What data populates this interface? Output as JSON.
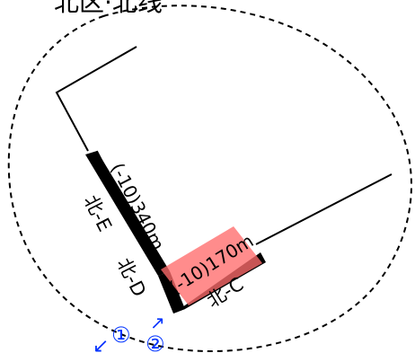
{
  "diagram": {
    "title_text": "北区·北线",
    "labels": {
      "north_e": "北-E",
      "north_d": "北-D",
      "north_c": "北-C",
      "measure_left": "(-10)340m",
      "measure_right": "(-10)170m"
    },
    "markers": {
      "one": "①",
      "two": "②",
      "arrow_left": "↙",
      "arrow_up": "↗"
    },
    "colors": {
      "primary_line": "#000000",
      "highlight": "#ff5a5a",
      "marker": "#0033ff",
      "dashed_boundary": "#000000"
    }
  }
}
